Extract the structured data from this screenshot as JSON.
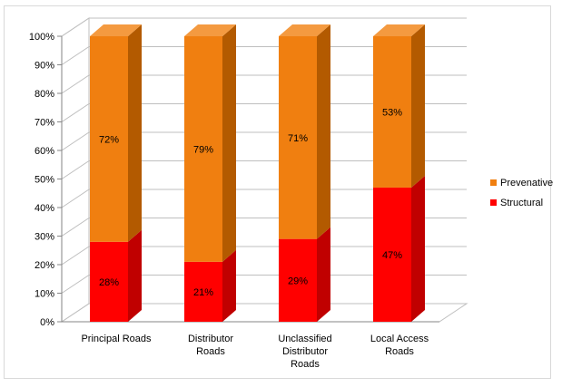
{
  "chart_data": {
    "type": "bar",
    "stacked": true,
    "three_d": true,
    "categories": [
      [
        "Principal Roads"
      ],
      [
        "Distributor",
        "Roads"
      ],
      [
        "Unclassified",
        "Distributor",
        "Roads"
      ],
      [
        "Local Access",
        "Roads"
      ]
    ],
    "series": [
      {
        "name": "Structural",
        "values": [
          28,
          21,
          29,
          47
        ],
        "labels": [
          "28%",
          "21%",
          "29%",
          "47%"
        ],
        "color": "#ff0000",
        "side_color": "#c00000",
        "top_color": "#e00000"
      },
      {
        "name": "Prevenative",
        "values": [
          72,
          79,
          71,
          53
        ],
        "labels": [
          "72%",
          "79%",
          "71%",
          "53%"
        ],
        "color": "#f07f10",
        "side_color": "#b35a00",
        "top_color": "#f49a40"
      }
    ],
    "ylim": [
      0,
      100
    ],
    "y_ticks": [
      "0%",
      "10%",
      "20%",
      "30%",
      "40%",
      "50%",
      "60%",
      "70%",
      "80%",
      "90%",
      "100%"
    ],
    "grid": true,
    "legend": "right",
    "legend_order": [
      "Prevenative",
      "Structural"
    ]
  }
}
